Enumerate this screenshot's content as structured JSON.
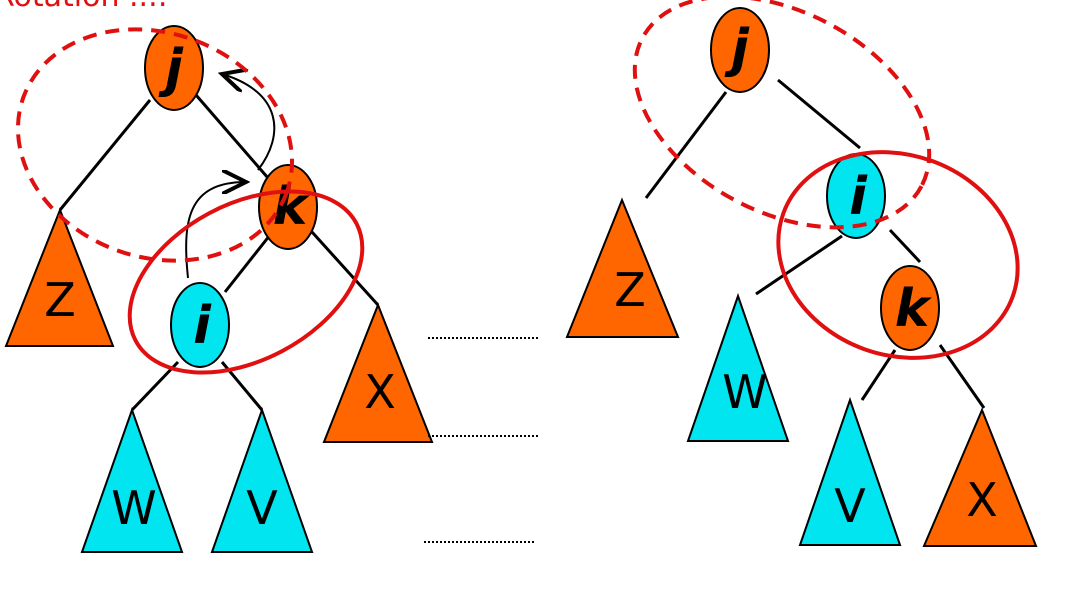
{
  "title_fragment": "Rotation ...:",
  "colors": {
    "orange": "#ff6600",
    "cyan": "#00e5f0",
    "red_outline": "#e01010",
    "black": "#000000"
  },
  "left_tree": {
    "nodes": {
      "j": "j",
      "k": "k",
      "i": "i"
    },
    "subtrees": {
      "z": "Z",
      "w": "W",
      "v": "V",
      "x": "X"
    }
  },
  "right_tree": {
    "nodes": {
      "j": "j",
      "i": "i",
      "k": "k"
    },
    "subtrees": {
      "z": "Z",
      "w": "W",
      "v": "V",
      "x": "X"
    }
  }
}
